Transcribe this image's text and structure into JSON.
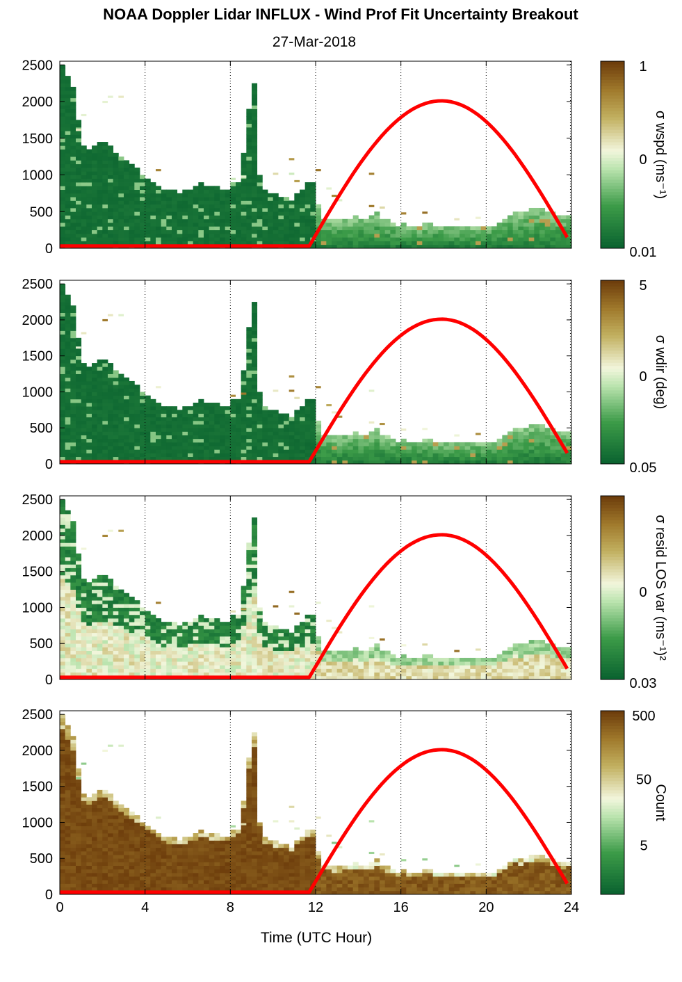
{
  "title": "NOAA Doppler Lidar INFLUX - Wind Prof Fit Uncertainty Breakout",
  "subtitle": "27-Mar-2018",
  "colors": {
    "green_dark": "#0b6430",
    "green_mid": "#3c9b48",
    "green_light": "#b9e3ad",
    "pale": "#f2f6dc",
    "tan": "#c2b060",
    "brown_mid": "#a07a2c",
    "brown_dark": "#6e3e0c",
    "sun_curve": "#ff0000"
  },
  "chart_data": [
    {
      "type": "heatmap",
      "title": "",
      "xlabel": "",
      "ylabel": "",
      "xlim": [
        0,
        24
      ],
      "ylim": [
        0,
        2550
      ],
      "xticks": [
        0,
        4,
        8,
        12,
        16,
        20,
        24
      ],
      "yticks": [
        0,
        500,
        1000,
        1500,
        2000,
        2500
      ],
      "grid": "vertical dotted lines at 4, 8, 12, 16, 20, 24",
      "colorbar": {
        "label": "σ wspd (ms⁻¹)",
        "labels": [
          "1",
          "0",
          "0.01"
        ],
        "scale": "log"
      },
      "field": "sigma_wspd",
      "solar_elevation_curve": {
        "x": [
          0,
          11.7,
          17.9,
          23.8
        ],
        "y": [
          30,
          30,
          2010,
          150
        ]
      }
    },
    {
      "type": "heatmap",
      "title": "",
      "xlabel": "",
      "ylabel": "",
      "xlim": [
        0,
        24
      ],
      "ylim": [
        0,
        2550
      ],
      "xticks": [
        0,
        4,
        8,
        12,
        16,
        20,
        24
      ],
      "yticks": [
        0,
        500,
        1000,
        1500,
        2000,
        2500
      ],
      "grid": "vertical dotted lines at 4, 8, 12, 16, 20, 24",
      "colorbar": {
        "label": "σ wdir (deg)",
        "labels": [
          "5",
          "0",
          "0.05"
        ],
        "scale": "log"
      },
      "field": "sigma_wdir",
      "solar_elevation_curve": {
        "x": [
          0,
          11.7,
          17.9,
          23.8
        ],
        "y": [
          30,
          30,
          2010,
          150
        ]
      }
    },
    {
      "type": "heatmap",
      "title": "",
      "xlabel": "",
      "ylabel": "",
      "xlim": [
        0,
        24
      ],
      "ylim": [
        0,
        2550
      ],
      "xticks": [
        0,
        4,
        8,
        12,
        16,
        20,
        24
      ],
      "yticks": [
        0,
        500,
        1000,
        1500,
        2000,
        2500
      ],
      "grid": "vertical dotted lines at 4, 8, 12, 16, 20, 24",
      "colorbar": {
        "label": "σ resid LOS var (ms⁻¹)²",
        "labels": [
          "",
          "0",
          "0.03"
        ],
        "scale": "log"
      },
      "field": "sigma_resid_los_var",
      "solar_elevation_curve": {
        "x": [
          0,
          11.7,
          17.9,
          23.8
        ],
        "y": [
          30,
          30,
          2010,
          150
        ]
      }
    },
    {
      "type": "heatmap",
      "title": "",
      "xlabel": "Time (UTC Hour)",
      "ylabel": "",
      "xlim": [
        0,
        24
      ],
      "ylim": [
        0,
        2550
      ],
      "xticks": [
        0,
        4,
        8,
        12,
        16,
        20,
        24
      ],
      "yticks": [
        0,
        500,
        1000,
        1500,
        2000,
        2500
      ],
      "grid": "vertical dotted lines at 4, 8, 12, 16, 20, 24",
      "colorbar": {
        "label": "Count",
        "labels": [
          "500",
          "50",
          "5"
        ],
        "scale": "log"
      },
      "field": "count",
      "solar_elevation_curve": {
        "x": [
          0,
          11.7,
          17.9,
          23.8
        ],
        "y": [
          30,
          30,
          2010,
          150
        ]
      }
    }
  ],
  "data_extent": {
    "time_resolution_hours": 0.25,
    "height_resolution_m": 50,
    "profile_top_m": [
      [
        0,
        2500
      ],
      [
        0.25,
        2350
      ],
      [
        0.5,
        2200
      ],
      [
        0.75,
        1750
      ],
      [
        1,
        1400
      ],
      [
        1.25,
        1350
      ],
      [
        1.5,
        1400
      ],
      [
        1.75,
        1450
      ],
      [
        2,
        1450
      ],
      [
        2.25,
        1400
      ],
      [
        2.5,
        1300
      ],
      [
        2.75,
        1250
      ],
      [
        3,
        1200
      ],
      [
        3.25,
        1150
      ],
      [
        3.5,
        1100
      ],
      [
        3.75,
        1000
      ],
      [
        4,
        950
      ],
      [
        4.25,
        900
      ],
      [
        4.5,
        850
      ],
      [
        4.75,
        800
      ],
      [
        5,
        760
      ],
      [
        5.25,
        760
      ],
      [
        5.5,
        740
      ],
      [
        5.75,
        760
      ],
      [
        6,
        800
      ],
      [
        6.25,
        820
      ],
      [
        6.5,
        860
      ],
      [
        6.75,
        840
      ],
      [
        7,
        820
      ],
      [
        7.25,
        820
      ],
      [
        7.5,
        800
      ],
      [
        7.75,
        780
      ],
      [
        8,
        860
      ],
      [
        8.25,
        900
      ],
      [
        8.5,
        1300
      ],
      [
        8.75,
        1900
      ],
      [
        9,
        2250
      ],
      [
        9.25,
        1000
      ],
      [
        9.5,
        760
      ],
      [
        9.75,
        740
      ],
      [
        10,
        720
      ],
      [
        10.25,
        700
      ],
      [
        10.5,
        700
      ],
      [
        10.75,
        650
      ],
      [
        11,
        740
      ],
      [
        11.25,
        800
      ],
      [
        11.5,
        860
      ],
      [
        11.75,
        880
      ],
      [
        12,
        600
      ],
      [
        12.25,
        400
      ],
      [
        12.5,
        380
      ],
      [
        12.75,
        370
      ],
      [
        13,
        370
      ],
      [
        13.25,
        380
      ],
      [
        13.5,
        390
      ],
      [
        13.75,
        420
      ],
      [
        14,
        400
      ],
      [
        14.25,
        400
      ],
      [
        14.5,
        420
      ],
      [
        14.75,
        480
      ],
      [
        15,
        380
      ],
      [
        15.25,
        360
      ],
      [
        15.5,
        320
      ],
      [
        15.75,
        300
      ],
      [
        16,
        320
      ],
      [
        16.25,
        300
      ],
      [
        16.5,
        300
      ],
      [
        16.75,
        280
      ],
      [
        17,
        320
      ],
      [
        17.25,
        320
      ],
      [
        17.5,
        300
      ],
      [
        17.75,
        300
      ],
      [
        18,
        280
      ],
      [
        18.25,
        300
      ],
      [
        18.5,
        300
      ],
      [
        18.75,
        280
      ],
      [
        19,
        280
      ],
      [
        19.25,
        280
      ],
      [
        19.5,
        280
      ],
      [
        19.75,
        270
      ],
      [
        20,
        300
      ],
      [
        20.25,
        300
      ],
      [
        20.5,
        350
      ],
      [
        20.75,
        400
      ],
      [
        21,
        450
      ],
      [
        21.25,
        500
      ],
      [
        21.5,
        480
      ],
      [
        21.75,
        500
      ],
      [
        22,
        520
      ],
      [
        22.25,
        520
      ],
      [
        22.5,
        520
      ],
      [
        22.75,
        500
      ],
      [
        23,
        480
      ],
      [
        23.25,
        450
      ],
      [
        23.5,
        430
      ],
      [
        23.75,
        450
      ]
    ],
    "isolated_cells": [
      [
        2,
        1980
      ],
      [
        2.25,
        2050
      ],
      [
        2.75,
        2050
      ],
      [
        1,
        1800
      ],
      [
        0.75,
        1600
      ],
      [
        4.5,
        1050
      ],
      [
        8,
        930
      ],
      [
        8.5,
        960
      ],
      [
        10,
        1000
      ],
      [
        10.75,
        1000
      ],
      [
        10.75,
        1200
      ],
      [
        11,
        900
      ],
      [
        12,
        1050
      ],
      [
        12.5,
        800
      ],
      [
        12.75,
        700
      ],
      [
        13,
        640
      ],
      [
        14.5,
        560
      ],
      [
        14.5,
        1000
      ],
      [
        15,
        540
      ],
      [
        17,
        470
      ],
      [
        16,
        460
      ],
      [
        18.5,
        380
      ],
      [
        19.5,
        400
      ]
    ]
  }
}
